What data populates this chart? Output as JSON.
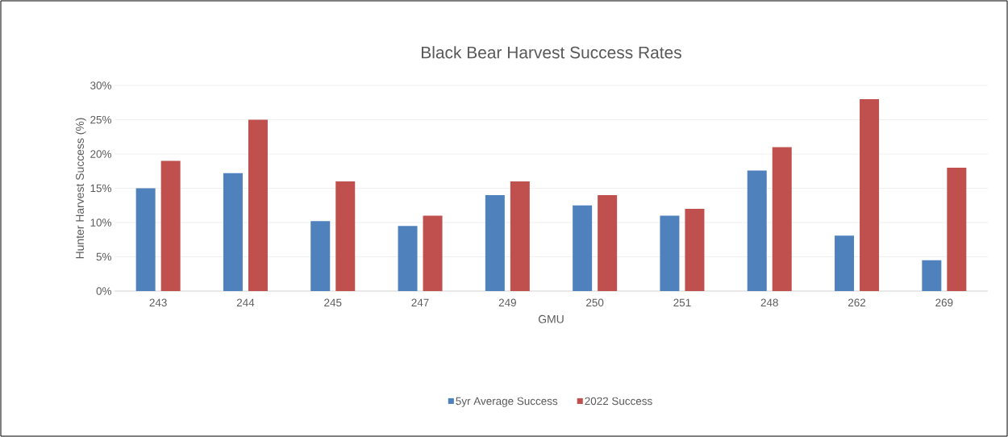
{
  "chart_data": {
    "type": "bar",
    "title": "Black Bear Harvest Success Rates",
    "xlabel": "GMU",
    "ylabel": "Hunter Harvest Success (%)",
    "categories": [
      "243",
      "244",
      "245",
      "247",
      "249",
      "250",
      "251",
      "248",
      "262",
      "269"
    ],
    "series": [
      {
        "name": "5yr Average Success",
        "color": "#4f81bd",
        "values": [
          15,
          17.2,
          10.2,
          9.5,
          14,
          12.5,
          11,
          17.6,
          8.1,
          4.5
        ]
      },
      {
        "name": "2022 Success",
        "color": "#c0504d",
        "values": [
          19,
          25,
          16,
          11,
          16,
          14,
          12,
          21,
          28,
          18
        ]
      }
    ],
    "ylim": [
      0,
      30
    ],
    "yticks": [
      {
        "value": 0,
        "label": "0%"
      },
      {
        "value": 5,
        "label": "5%"
      },
      {
        "value": 10,
        "label": "10%"
      },
      {
        "value": 15,
        "label": "15%"
      },
      {
        "value": 20,
        "label": "20%"
      },
      {
        "value": 25,
        "label": "25%"
      },
      {
        "value": 30,
        "label": "30%"
      }
    ],
    "grid": "y",
    "legend": "bottom"
  }
}
